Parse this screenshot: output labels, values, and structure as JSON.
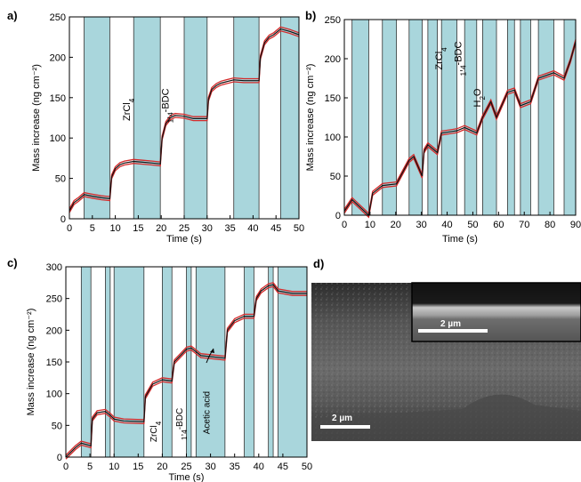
{
  "colors": {
    "shade": "#a9d6dc",
    "series_red": "#d42a2a",
    "series_black": "#111111"
  },
  "sem": {
    "label": "d)",
    "scale_main": "2 µm",
    "scale_inset": "2 µm"
  },
  "chart_data": [
    {
      "panel": "a)",
      "type": "line",
      "xlabel": "Time (s)",
      "ylabel": "Mass increase (ng cm⁻²)",
      "xlim": [
        0,
        50
      ],
      "ylim": [
        0,
        250
      ],
      "xticks": [
        0,
        5,
        10,
        15,
        20,
        25,
        30,
        35,
        40,
        45,
        50
      ],
      "yticks": [
        0,
        50,
        100,
        150,
        200,
        250
      ],
      "annotations": [
        {
          "text": "ZrCl4",
          "x": 13.2,
          "y": 135
        },
        {
          "text": "1,4-BDC",
          "x": 21.6,
          "y": 140
        }
      ],
      "shaded_intervals": [
        [
          3.2,
          8.8
        ],
        [
          14.0,
          19.8
        ],
        [
          25.0,
          30.0
        ],
        [
          35.8,
          41.3
        ],
        [
          46.0,
          50.5
        ]
      ],
      "series": [
        {
          "x": [
            0,
            0.5,
            1,
            2,
            3.2,
            5,
            7,
            8.8,
            9.2,
            10,
            11,
            12,
            14,
            16,
            18,
            19.8,
            20.2,
            21,
            22,
            23,
            25,
            27,
            29,
            30,
            30.3,
            31,
            32,
            33,
            35.8,
            38,
            40,
            41.3,
            41.6,
            42.5,
            43.5,
            44.5,
            46,
            48,
            50
          ],
          "values": [
            10,
            15,
            20,
            24,
            30,
            28,
            26,
            25,
            52,
            62,
            67,
            69,
            71,
            70,
            69,
            68,
            100,
            118,
            125,
            128,
            127,
            124,
            124,
            124,
            148,
            160,
            165,
            168,
            172,
            171,
            171,
            171,
            200,
            218,
            225,
            228,
            235,
            232,
            228
          ]
        }
      ]
    },
    {
      "panel": "b)",
      "type": "line",
      "xlabel": "Time (s)",
      "ylabel": "Mass increase (ng cm⁻²)",
      "xlim": [
        0,
        90
      ],
      "ylim": [
        0,
        250
      ],
      "xticks": [
        0,
        10,
        20,
        30,
        40,
        50,
        60,
        70,
        80,
        90
      ],
      "yticks": [
        0,
        50,
        100,
        150,
        200,
        250
      ],
      "annotations": [
        {
          "text": "ZrCl4",
          "x": 38,
          "y": 200
        },
        {
          "text": "1,4-BDC",
          "x": 45.5,
          "y": 200
        },
        {
          "text": "H2O",
          "x": 53,
          "y": 150
        }
      ],
      "shaded_intervals": [
        [
          3,
          9.5
        ],
        [
          14.8,
          20.3
        ],
        [
          25.2,
          30.3
        ],
        [
          32.5,
          36.2
        ],
        [
          37.8,
          43.8
        ],
        [
          46.8,
          51.5
        ],
        [
          53.8,
          59.2
        ],
        [
          63.5,
          66.2
        ],
        [
          68.5,
          72.5
        ],
        [
          75.5,
          81.5
        ],
        [
          85.5,
          90.5
        ]
      ],
      "series": [
        {
          "x": [
            0,
            3,
            9.5,
            11,
            14.8,
            20.3,
            25.2,
            27,
            30.3,
            31,
            32.5,
            36.2,
            37.8,
            43.8,
            46.8,
            51.5,
            53.8,
            57,
            59.2,
            63.5,
            66.2,
            68.5,
            72.5,
            75.5,
            81.5,
            85.5,
            88,
            90
          ],
          "values": [
            5,
            20,
            0,
            28,
            38,
            40,
            70,
            75,
            50,
            82,
            90,
            80,
            105,
            108,
            112,
            105,
            125,
            145,
            125,
            157,
            160,
            140,
            145,
            175,
            182,
            175,
            198,
            222
          ]
        }
      ]
    },
    {
      "panel": "c)",
      "type": "line",
      "xlabel": "Time (s)",
      "ylabel": "Mass increase (ng cm⁻²)",
      "xlim": [
        0,
        50
      ],
      "ylim": [
        0,
        300
      ],
      "xticks": [
        0,
        5,
        10,
        15,
        20,
        25,
        30,
        35,
        40,
        45,
        50
      ],
      "yticks": [
        0,
        50,
        100,
        150,
        200,
        250,
        300
      ],
      "annotations": [
        {
          "text": "ZrCl4",
          "x": 18.8,
          "y": 40
        },
        {
          "text": "1,4-BDC",
          "x": 24.2,
          "y": 52
        },
        {
          "text": "Acetic acid",
          "x": 29.8,
          "y": 70
        }
      ],
      "shaded_intervals": [
        [
          3.2,
          5.2
        ],
        [
          8.2,
          9.2
        ],
        [
          10.0,
          16.2
        ],
        [
          20.0,
          22.0
        ],
        [
          25.0,
          26.0
        ],
        [
          27.0,
          33.0
        ],
        [
          37.0,
          39.0
        ],
        [
          42.0,
          43.0
        ],
        [
          44.0,
          50.0
        ]
      ],
      "series": [
        {
          "x": [
            0,
            2,
            3.2,
            5.2,
            5.5,
            6.5,
            8.2,
            9.2,
            10,
            12,
            16.2,
            16.5,
            18,
            20,
            22,
            22.5,
            24,
            25,
            26,
            28,
            33,
            33.5,
            35,
            37,
            39,
            39.5,
            40.5,
            42,
            43,
            44,
            47,
            50
          ],
          "values": [
            0,
            15,
            22,
            18,
            60,
            70,
            72,
            66,
            60,
            57,
            56,
            95,
            115,
            122,
            120,
            150,
            162,
            170,
            172,
            160,
            156,
            200,
            215,
            222,
            222,
            250,
            262,
            270,
            272,
            262,
            258,
            258
          ]
        }
      ]
    }
  ]
}
